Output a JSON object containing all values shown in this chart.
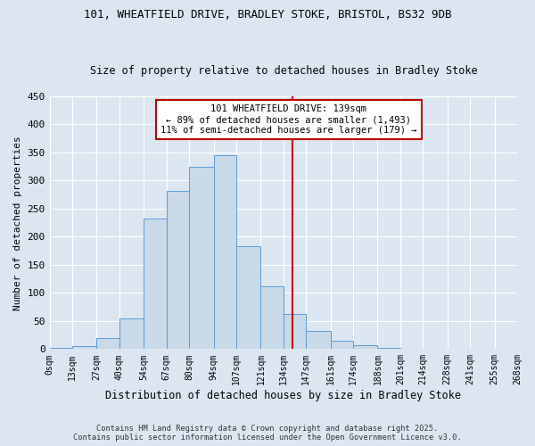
{
  "title_line1": "101, WHEATFIELD DRIVE, BRADLEY STOKE, BRISTOL, BS32 9DB",
  "title_line2": "Size of property relative to detached houses in Bradley Stoke",
  "xlabel": "Distribution of detached houses by size in Bradley Stoke",
  "ylabel": "Number of detached properties",
  "bin_labels": [
    "0sqm",
    "13sqm",
    "27sqm",
    "40sqm",
    "54sqm",
    "67sqm",
    "80sqm",
    "94sqm",
    "107sqm",
    "121sqm",
    "134sqm",
    "147sqm",
    "161sqm",
    "174sqm",
    "188sqm",
    "201sqm",
    "214sqm",
    "228sqm",
    "241sqm",
    "255sqm",
    "268sqm"
  ],
  "bar_values": [
    2,
    5,
    20,
    55,
    232,
    282,
    325,
    345,
    183,
    112,
    63,
    32,
    15,
    7,
    2,
    1,
    0,
    0,
    1,
    0
  ],
  "bin_edges": [
    0,
    13,
    27,
    40,
    54,
    67,
    80,
    94,
    107,
    121,
    134,
    147,
    161,
    174,
    188,
    201,
    214,
    228,
    241,
    255,
    268
  ],
  "bar_facecolor": "#c9d9e8",
  "bar_edgecolor": "#5b9bd5",
  "grid_color": "#ffffff",
  "bg_color": "#dce6f1",
  "vline_x": 139,
  "vline_color": "#c00000",
  "annotation_text": "101 WHEATFIELD DRIVE: 139sqm\n← 89% of detached houses are smaller (1,493)\n11% of semi-detached houses are larger (179) →",
  "annotation_box_color": "#c00000",
  "footer_line1": "Contains HM Land Registry data © Crown copyright and database right 2025.",
  "footer_line2": "Contains public sector information licensed under the Open Government Licence v3.0.",
  "ylim": [
    0,
    450
  ],
  "yticks": [
    0,
    50,
    100,
    150,
    200,
    250,
    300,
    350,
    400,
    450
  ]
}
